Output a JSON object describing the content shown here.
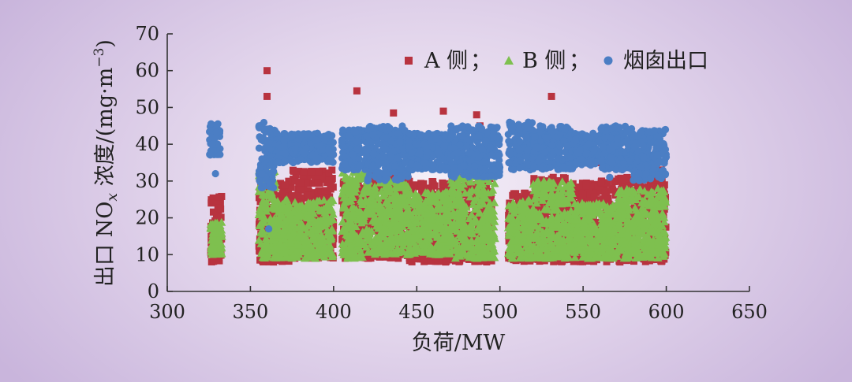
{
  "chart_data": {
    "type": "scatter",
    "xlabel": "负荷/MW",
    "ylabel": "出口 NOx 浓度/(mg·m−3)",
    "ylabel_parts": {
      "pre": "出口 NO",
      "sub": "x",
      "mid": " 浓度/(mg·m",
      "sup": "−3",
      "post": ")"
    },
    "xlim": [
      300,
      650
    ],
    "ylim": [
      0,
      70
    ],
    "x_ticks": [
      "300",
      "350",
      "400",
      "450",
      "500",
      "550",
      "600",
      "650"
    ],
    "y_ticks": [
      "0",
      "10",
      "20",
      "30",
      "40",
      "50",
      "60",
      "70"
    ],
    "grid": false,
    "legend_position": "top-right",
    "legend_separator": "；",
    "series": [
      {
        "name": "A 侧",
        "marker": "square",
        "color": "#b8333f",
        "segments": [
          [
            326,
            333,
            8,
            26
          ],
          [
            355,
            375,
            8,
            30
          ],
          [
            375,
            400,
            9,
            33
          ],
          [
            405,
            420,
            9,
            30
          ],
          [
            420,
            445,
            9,
            32
          ],
          [
            445,
            470,
            8,
            30
          ],
          [
            470,
            495,
            8,
            31
          ],
          [
            505,
            520,
            8,
            27
          ],
          [
            520,
            545,
            8,
            31
          ],
          [
            545,
            570,
            8,
            30
          ],
          [
            570,
            600,
            8,
            31
          ]
        ],
        "outliers": [
          [
            360,
            60
          ],
          [
            360,
            53
          ],
          [
            414,
            54.5
          ],
          [
            436,
            48.5
          ],
          [
            466,
            49
          ],
          [
            486,
            48
          ],
          [
            531,
            53
          ],
          [
            488,
            45
          ],
          [
            558,
            35
          ],
          [
            575,
            36
          ],
          [
            597,
            33
          ]
        ]
      },
      {
        "name": "B 侧",
        "marker": "triangle",
        "color": "#7ec04f",
        "segments": [
          [
            326,
            333,
            10,
            19
          ],
          [
            355,
            365,
            9,
            34
          ],
          [
            365,
            400,
            9,
            25
          ],
          [
            405,
            420,
            9,
            33
          ],
          [
            420,
            445,
            10,
            30
          ],
          [
            445,
            470,
            10,
            27
          ],
          [
            470,
            497,
            9,
            32
          ],
          [
            505,
            520,
            9,
            25
          ],
          [
            520,
            545,
            9,
            30
          ],
          [
            545,
            570,
            9,
            24
          ],
          [
            570,
            600,
            9,
            28
          ]
        ],
        "outliers": []
      },
      {
        "name": "烟囱出口",
        "marker": "circle",
        "color": "#4b7ec4",
        "segments": [
          [
            325,
            332,
            37,
            46
          ],
          [
            355,
            365,
            28,
            46
          ],
          [
            365,
            400,
            35,
            43
          ],
          [
            405,
            420,
            33,
            44
          ],
          [
            420,
            445,
            30,
            45
          ],
          [
            445,
            470,
            33,
            43
          ],
          [
            470,
            500,
            31,
            45
          ],
          [
            505,
            520,
            33,
            46
          ],
          [
            520,
            545,
            33,
            45
          ],
          [
            545,
            560,
            34,
            43
          ],
          [
            560,
            580,
            33,
            45
          ],
          [
            580,
            600,
            30,
            44
          ]
        ],
        "outliers": [
          [
            329,
            32
          ],
          [
            361,
            17
          ],
          [
            566,
            31
          ]
        ]
      }
    ]
  }
}
